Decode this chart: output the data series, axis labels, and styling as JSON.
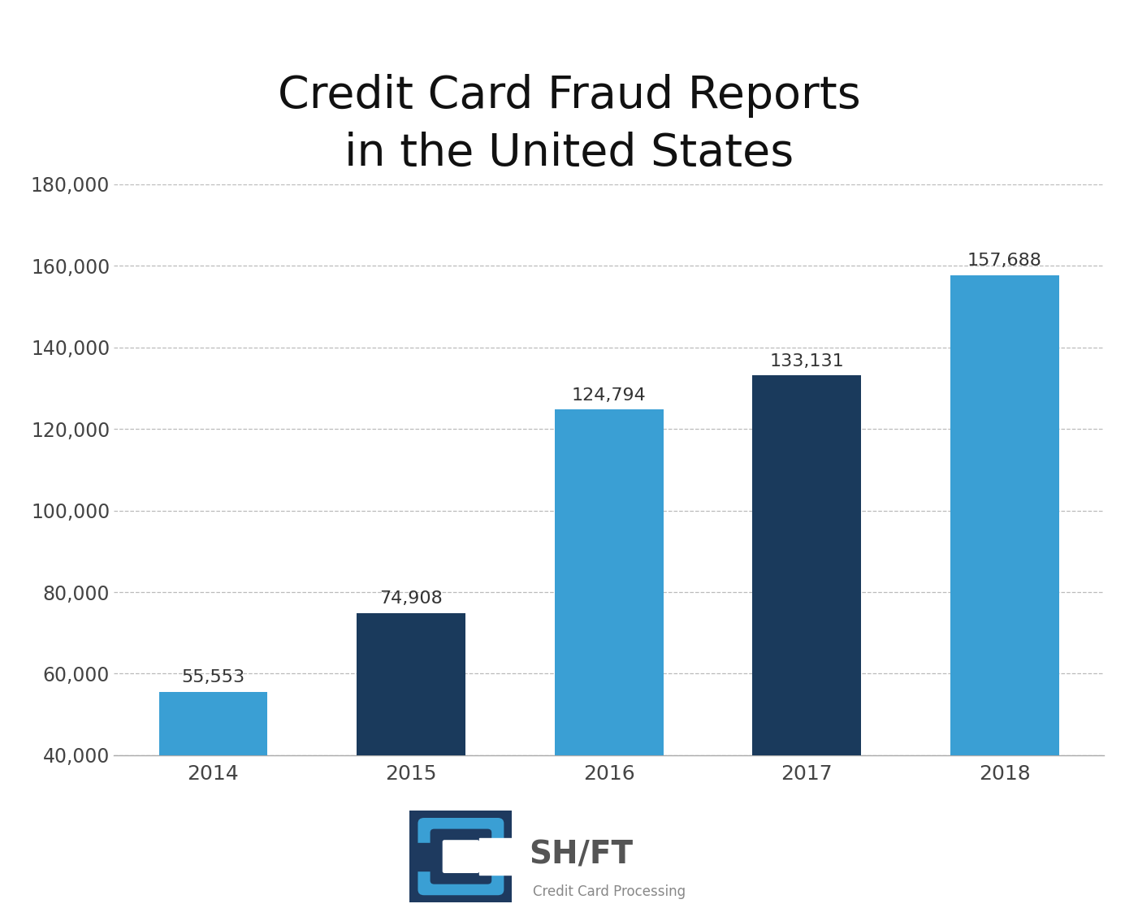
{
  "title": "Credit Card Fraud Reports\nin the United States",
  "years": [
    "2014",
    "2015",
    "2016",
    "2017",
    "2018"
  ],
  "values": [
    55553,
    74908,
    124794,
    133131,
    157688
  ],
  "bar_colors": [
    "#3a9fd4",
    "#1a3a5c",
    "#3a9fd4",
    "#1a3a5c",
    "#3a9fd4"
  ],
  "bar_labels": [
    "55,553",
    "74,908",
    "124,794",
    "133,131",
    "157,688"
  ],
  "ylim": [
    40000,
    180000
  ],
  "yticks": [
    40000,
    60000,
    80000,
    100000,
    120000,
    140000,
    160000,
    180000
  ],
  "ytick_labels": [
    "40,000",
    "60,000",
    "80,000",
    "100,000",
    "120,000",
    "140,000",
    "160,000",
    "180,000"
  ],
  "title_fontsize": 40,
  "tick_fontsize": 17,
  "label_fontsize": 16,
  "background_color": "#ffffff",
  "grid_color": "#bbbbbb"
}
